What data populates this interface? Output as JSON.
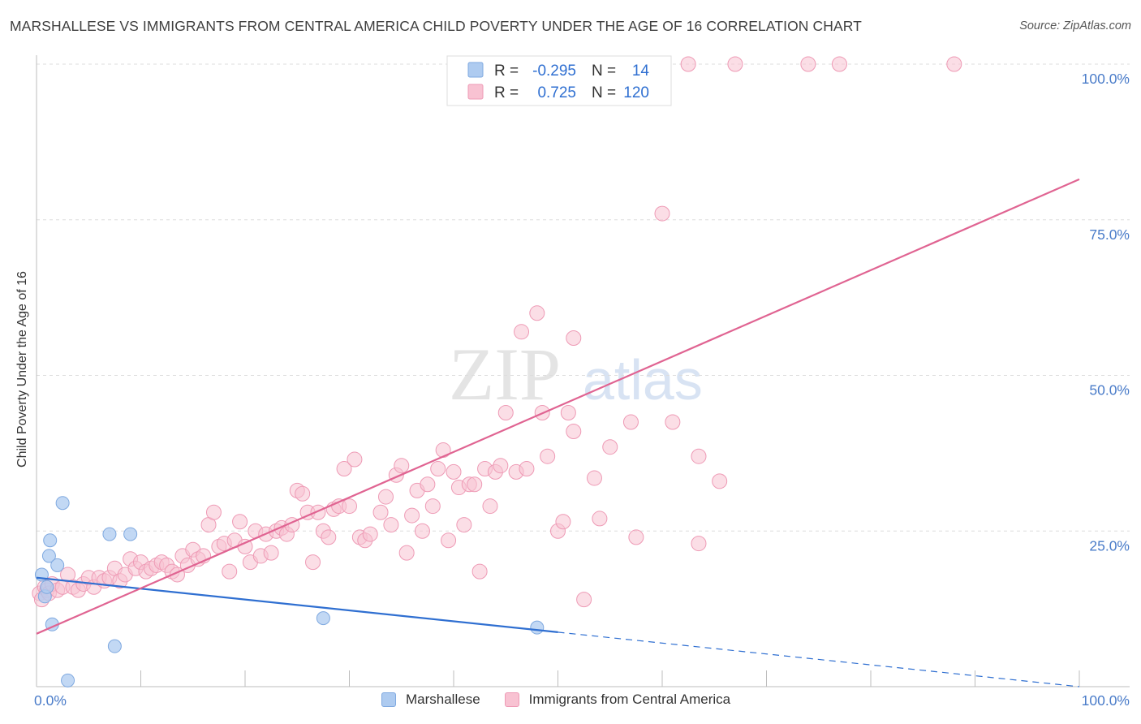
{
  "title": "MARSHALLESE VS IMMIGRANTS FROM CENTRAL AMERICA CHILD POVERTY UNDER THE AGE OF 16 CORRELATION CHART",
  "source": "Source: ZipAtlas.com",
  "watermark": {
    "zip": "ZIP",
    "atlas": "atlas"
  },
  "colors": {
    "blue_fill": "#aecbf0",
    "blue_stroke": "#7fa9e0",
    "blue_line": "#2f6fd1",
    "pink_fill": "#f8c2d2",
    "pink_stroke": "#ee9ab5",
    "pink_line": "#e06492",
    "tick_label": "#4a7cc9",
    "grid": "#dddddd"
  },
  "legend": {
    "rows": [
      {
        "r_label": "R =",
        "r_value": "-0.295",
        "n_label": "N =",
        "n_value": "14"
      },
      {
        "r_label": "R =",
        "r_value": "0.725",
        "n_label": "N =",
        "n_value": "120"
      }
    ]
  },
  "chart_data": {
    "type": "scatter",
    "title": "MARSHALLESE VS IMMIGRANTS FROM CENTRAL AMERICA CHILD POVERTY UNDER THE AGE OF 16 CORRELATION CHART",
    "xlabel": "",
    "ylabel": "Child Poverty Under the Age of 16",
    "xlim": [
      0,
      100
    ],
    "ylim": [
      0,
      100
    ],
    "x_tick_labels": [
      "0.0%",
      "100.0%"
    ],
    "y_ticks": [
      25,
      50,
      75,
      100
    ],
    "y_tick_labels": [
      "25.0%",
      "50.0%",
      "75.0%",
      "100.0%"
    ],
    "grid": true,
    "legend_position": "bottom",
    "series": [
      {
        "name": "Marshallese",
        "color": "#aecbf0",
        "points": [
          [
            0.5,
            18.0
          ],
          [
            0.8,
            14.5
          ],
          [
            1.0,
            16.0
          ],
          [
            1.2,
            21.0
          ],
          [
            1.3,
            23.5
          ],
          [
            1.5,
            10.0
          ],
          [
            2.0,
            19.5
          ],
          [
            2.5,
            29.5
          ],
          [
            3.0,
            1.0
          ],
          [
            7.0,
            24.5
          ],
          [
            7.5,
            6.5
          ],
          [
            9.0,
            24.5
          ],
          [
            27.5,
            11.0
          ],
          [
            48.0,
            9.5
          ]
        ],
        "trend": {
          "x0": 0,
          "y0": 17.5,
          "x1": 100,
          "y1": 0,
          "solid_until": 50
        }
      },
      {
        "name": "Immigrants from Central America",
        "color": "#f8c2d2",
        "points": [
          [
            0.3,
            15.0
          ],
          [
            0.5,
            14.0
          ],
          [
            0.8,
            16.0
          ],
          [
            1.0,
            15.5
          ],
          [
            1.2,
            15.0
          ],
          [
            1.5,
            16.5
          ],
          [
            2.0,
            15.5
          ],
          [
            2.5,
            16.0
          ],
          [
            3.0,
            18.0
          ],
          [
            3.5,
            16.0
          ],
          [
            4.0,
            15.5
          ],
          [
            4.5,
            16.5
          ],
          [
            5.0,
            17.5
          ],
          [
            5.5,
            16.0
          ],
          [
            6.0,
            17.5
          ],
          [
            6.5,
            17.0
          ],
          [
            7.0,
            17.5
          ],
          [
            7.5,
            19.0
          ],
          [
            8.0,
            17.0
          ],
          [
            8.5,
            18.0
          ],
          [
            9.0,
            20.5
          ],
          [
            9.5,
            19.0
          ],
          [
            10.0,
            20.0
          ],
          [
            10.5,
            18.5
          ],
          [
            11.0,
            19.0
          ],
          [
            11.5,
            19.5
          ],
          [
            12.0,
            20.0
          ],
          [
            12.5,
            19.5
          ],
          [
            13.0,
            18.5
          ],
          [
            13.5,
            18.0
          ],
          [
            14.0,
            21.0
          ],
          [
            14.5,
            19.5
          ],
          [
            15.0,
            22.0
          ],
          [
            15.5,
            20.5
          ],
          [
            16.0,
            21.0
          ],
          [
            16.5,
            26.0
          ],
          [
            17.0,
            28.0
          ],
          [
            17.5,
            22.5
          ],
          [
            18.0,
            23.0
          ],
          [
            18.5,
            18.5
          ],
          [
            19.0,
            23.5
          ],
          [
            19.5,
            26.5
          ],
          [
            20.0,
            22.5
          ],
          [
            20.5,
            20.0
          ],
          [
            21.0,
            25.0
          ],
          [
            21.5,
            21.0
          ],
          [
            22.0,
            24.5
          ],
          [
            22.5,
            21.5
          ],
          [
            23.0,
            25.0
          ],
          [
            23.5,
            25.5
          ],
          [
            24.0,
            24.5
          ],
          [
            24.5,
            26.0
          ],
          [
            25.0,
            31.5
          ],
          [
            25.5,
            31.0
          ],
          [
            26.0,
            28.0
          ],
          [
            26.5,
            20.0
          ],
          [
            27.0,
            28.0
          ],
          [
            27.5,
            25.0
          ],
          [
            28.0,
            24.0
          ],
          [
            28.5,
            28.5
          ],
          [
            29.0,
            29.0
          ],
          [
            29.5,
            35.0
          ],
          [
            30.0,
            29.0
          ],
          [
            30.5,
            36.5
          ],
          [
            31.0,
            24.0
          ],
          [
            31.5,
            23.5
          ],
          [
            32.0,
            24.5
          ],
          [
            33.0,
            28.0
          ],
          [
            33.5,
            30.5
          ],
          [
            34.0,
            26.0
          ],
          [
            34.5,
            34.0
          ],
          [
            35.0,
            35.5
          ],
          [
            35.5,
            21.5
          ],
          [
            36.0,
            27.5
          ],
          [
            36.5,
            31.5
          ],
          [
            37.0,
            25.0
          ],
          [
            37.5,
            32.5
          ],
          [
            38.0,
            29.0
          ],
          [
            38.5,
            35.0
          ],
          [
            39.0,
            38.0
          ],
          [
            39.5,
            23.5
          ],
          [
            40.0,
            34.5
          ],
          [
            40.5,
            32.0
          ],
          [
            41.0,
            26.0
          ],
          [
            41.5,
            32.5
          ],
          [
            42.0,
            32.5
          ],
          [
            42.5,
            18.5
          ],
          [
            43.0,
            35.0
          ],
          [
            43.5,
            29.0
          ],
          [
            44.0,
            34.5
          ],
          [
            44.5,
            35.5
          ],
          [
            45.0,
            44.0
          ],
          [
            46.0,
            34.5
          ],
          [
            46.5,
            57.0
          ],
          [
            47.0,
            35.0
          ],
          [
            48.0,
            60.0
          ],
          [
            48.5,
            44.0
          ],
          [
            49.0,
            37.0
          ],
          [
            50.0,
            25.0
          ],
          [
            50.5,
            26.5
          ],
          [
            51.0,
            44.0
          ],
          [
            51.5,
            56.0
          ],
          [
            52.5,
            14.0
          ],
          [
            53.5,
            33.5
          ],
          [
            54.0,
            27.0
          ],
          [
            55.0,
            38.5
          ],
          [
            57.0,
            42.5
          ],
          [
            57.5,
            24.0
          ],
          [
            60.0,
            76.0
          ],
          [
            61.0,
            42.5
          ],
          [
            63.5,
            23.0
          ],
          [
            63.5,
            37.0
          ],
          [
            65.5,
            33.0
          ],
          [
            51.5,
            41.0
          ],
          [
            60.0,
            100.0
          ],
          [
            62.5,
            100.0
          ],
          [
            67.0,
            100.0
          ],
          [
            74.0,
            100.0
          ],
          [
            77.0,
            100.0
          ],
          [
            88.0,
            100.0
          ]
        ],
        "trend": {
          "x0": 0,
          "y0": 8.5,
          "x1": 100,
          "y1": 81.5
        }
      }
    ]
  }
}
